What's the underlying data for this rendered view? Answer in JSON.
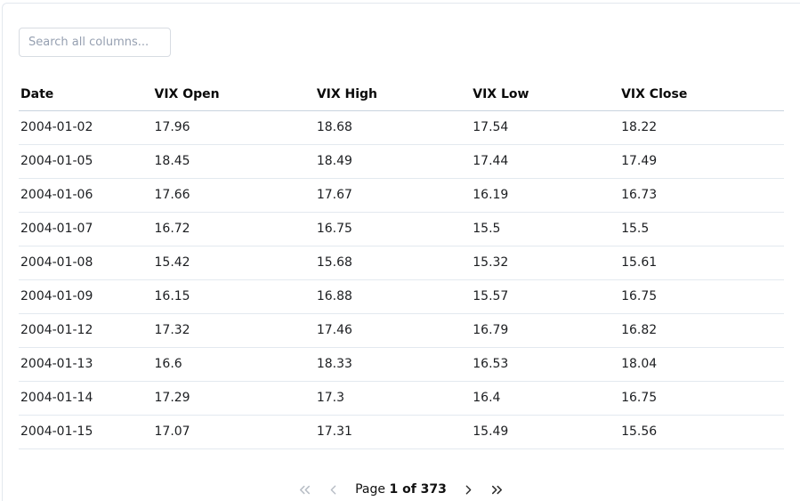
{
  "search": {
    "placeholder": "Search all columns..."
  },
  "table": {
    "columns": [
      "Date",
      "VIX Open",
      "VIX High",
      "VIX Low",
      "VIX Close"
    ],
    "rows": [
      [
        "2004-01-02",
        "17.96",
        "18.68",
        "17.54",
        "18.22"
      ],
      [
        "2004-01-05",
        "18.45",
        "18.49",
        "17.44",
        "17.49"
      ],
      [
        "2004-01-06",
        "17.66",
        "17.67",
        "16.19",
        "16.73"
      ],
      [
        "2004-01-07",
        "16.72",
        "16.75",
        "15.5",
        "15.5"
      ],
      [
        "2004-01-08",
        "15.42",
        "15.68",
        "15.32",
        "15.61"
      ],
      [
        "2004-01-09",
        "16.15",
        "16.88",
        "15.57",
        "16.75"
      ],
      [
        "2004-01-12",
        "17.32",
        "17.46",
        "16.79",
        "16.82"
      ],
      [
        "2004-01-13",
        "16.6",
        "18.33",
        "16.53",
        "18.04"
      ],
      [
        "2004-01-14",
        "17.29",
        "17.3",
        "16.4",
        "16.75"
      ],
      [
        "2004-01-15",
        "17.07",
        "17.31",
        "15.49",
        "15.56"
      ]
    ]
  },
  "pagination": {
    "page_label": "Page",
    "page_info": "1 of 373",
    "icons": {
      "first": "chevrons-left",
      "prev": "chevron-left",
      "next": "chevron-right",
      "last": "chevrons-right"
    }
  },
  "colors": {
    "border_outer": "#e3e8ee",
    "border_header": "#c9d3de",
    "border_row": "#e3e9ef",
    "icon_disabled": "#b7bdc5",
    "icon_enabled": "#2c2c2c",
    "text": "#1c1e21"
  }
}
